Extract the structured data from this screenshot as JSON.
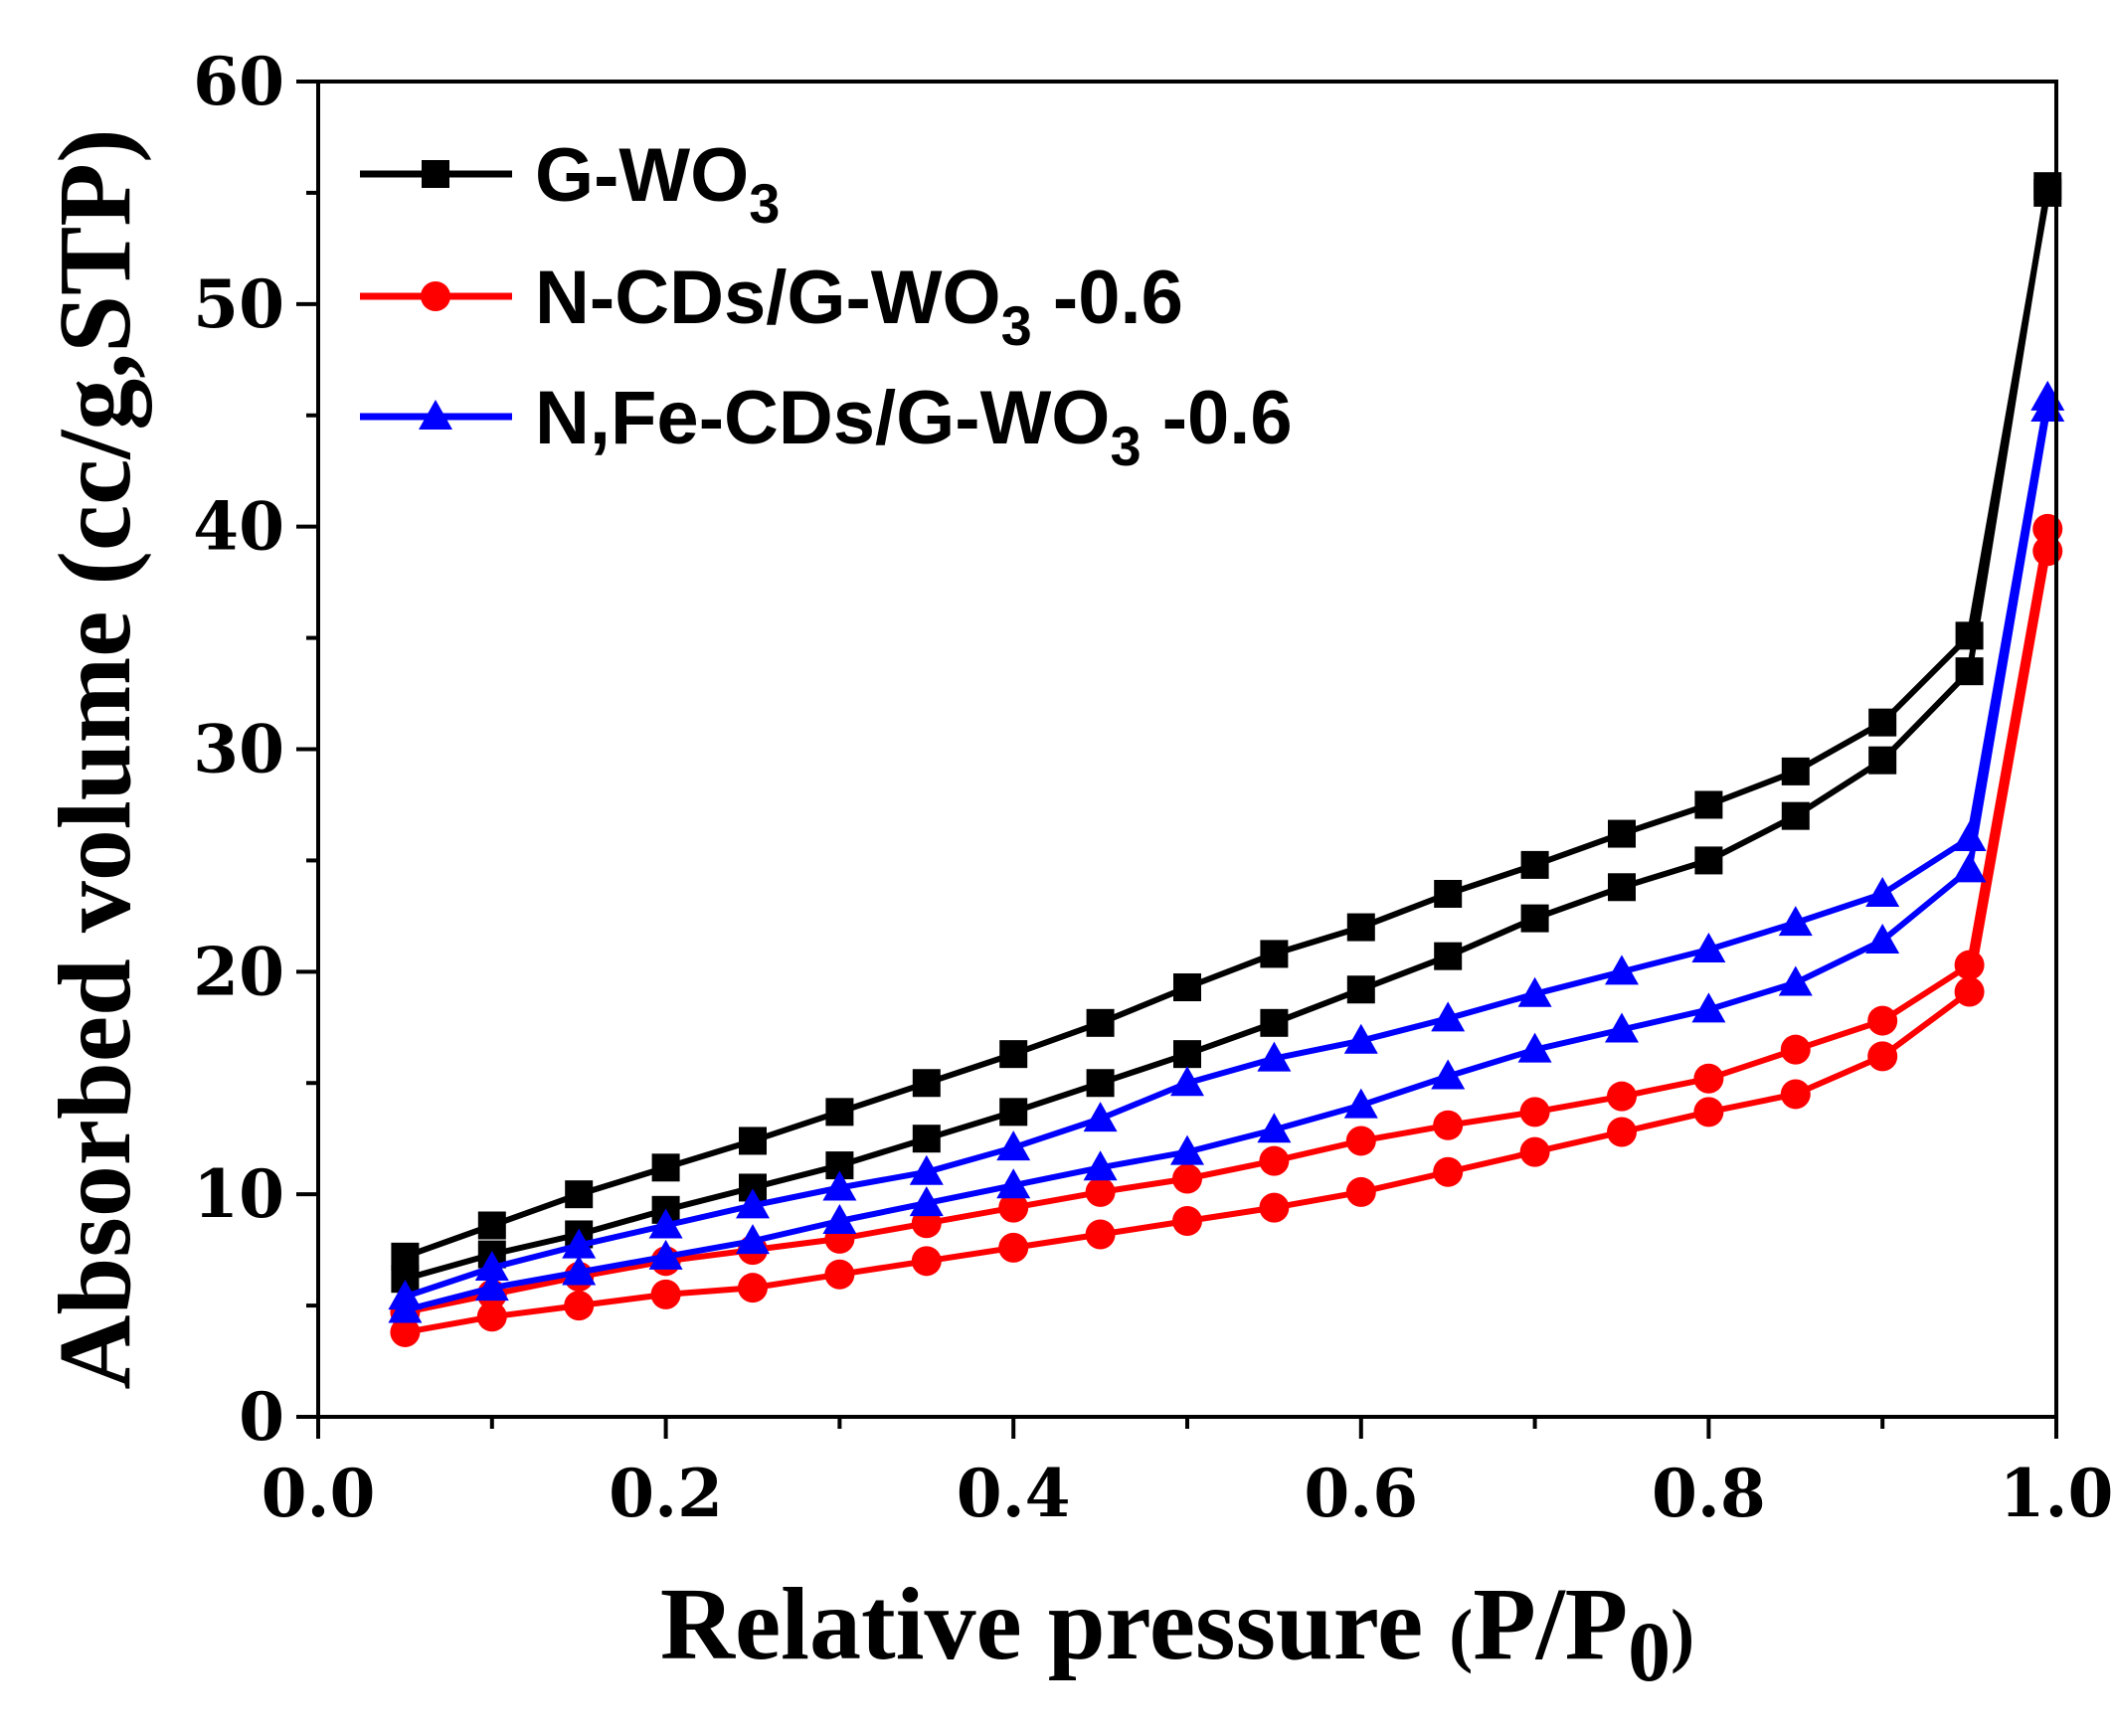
{
  "chart_data": {
    "type": "line",
    "title": "",
    "xlabel": "Relative pressure (P/P0)",
    "xlabel_main": "Relative pressure ",
    "xlabel_open": "(",
    "xlabel_var": "P/P",
    "xlabel_sub": "0",
    "xlabel_close": ")",
    "ylabel": "Absorbed volume (cc/g,STP)",
    "xlim": [
      0.0,
      1.0
    ],
    "ylim": [
      0,
      60
    ],
    "xticks": [
      "0.0",
      "0.2",
      "0.4",
      "0.6",
      "0.8",
      "1.0"
    ],
    "yticks": [
      "0",
      "10",
      "20",
      "30",
      "40",
      "50",
      "60"
    ],
    "legend_position": "top-left",
    "series": [
      {
        "name": "G-WO3",
        "label_main": "G-WO",
        "label_sub": "3",
        "label_suffix": "",
        "color": "#000000",
        "marker": "square",
        "adsorption": {
          "x": [
            0.05,
            0.1,
            0.15,
            0.2,
            0.25,
            0.3,
            0.35,
            0.4,
            0.45,
            0.5,
            0.55,
            0.6,
            0.65,
            0.7,
            0.75,
            0.8,
            0.85,
            0.9,
            0.95,
            0.995
          ],
          "y": [
            6.2,
            7.3,
            8.2,
            9.3,
            10.3,
            11.3,
            12.5,
            13.7,
            15.0,
            16.3,
            17.7,
            19.2,
            20.7,
            22.4,
            23.8,
            25.0,
            27.0,
            29.5,
            33.5,
            55.3
          ]
        },
        "desorption": {
          "x": [
            0.995,
            0.95,
            0.9,
            0.85,
            0.8,
            0.75,
            0.7,
            0.65,
            0.6,
            0.55,
            0.5,
            0.45,
            0.4,
            0.35,
            0.3,
            0.25,
            0.2,
            0.15,
            0.1,
            0.05
          ],
          "y": [
            55.0,
            35.1,
            31.2,
            29.0,
            27.5,
            26.2,
            24.8,
            23.5,
            22.0,
            20.8,
            19.3,
            17.7,
            16.3,
            15.0,
            13.7,
            12.4,
            11.2,
            10.0,
            8.6,
            7.2
          ]
        }
      },
      {
        "name": "N-CDs/G-WO3 -0.6",
        "label_main": "N-CDs/G-WO",
        "label_sub": "3",
        "label_suffix": " -0.6",
        "color": "#ff0000",
        "marker": "circle",
        "adsorption": {
          "x": [
            0.05,
            0.1,
            0.15,
            0.2,
            0.25,
            0.3,
            0.35,
            0.4,
            0.45,
            0.5,
            0.55,
            0.6,
            0.65,
            0.7,
            0.75,
            0.8,
            0.85,
            0.9,
            0.95,
            0.995
          ],
          "y": [
            3.8,
            4.5,
            5.0,
            5.5,
            5.8,
            6.4,
            7.0,
            7.6,
            8.2,
            8.8,
            9.4,
            10.1,
            11.0,
            11.9,
            12.8,
            13.7,
            14.5,
            16.2,
            19.1,
            38.9
          ]
        },
        "desorption": {
          "x": [
            0.995,
            0.95,
            0.9,
            0.85,
            0.8,
            0.75,
            0.7,
            0.65,
            0.6,
            0.55,
            0.5,
            0.45,
            0.4,
            0.35,
            0.3,
            0.25,
            0.2,
            0.15,
            0.1,
            0.05
          ],
          "y": [
            39.9,
            20.3,
            17.8,
            16.5,
            15.2,
            14.4,
            13.7,
            13.1,
            12.4,
            11.5,
            10.7,
            10.1,
            9.4,
            8.7,
            8.0,
            7.5,
            7.0,
            6.3,
            5.5,
            4.7
          ]
        }
      },
      {
        "name": "N,Fe-CDs/G-WO3 -0.6",
        "label_main": "N,Fe-CDs/G-WO",
        "label_sub": "3",
        "label_suffix": " -0.6",
        "color": "#0000ff",
        "marker": "triangle",
        "adsorption": {
          "x": [
            0.05,
            0.1,
            0.15,
            0.2,
            0.25,
            0.3,
            0.35,
            0.4,
            0.45,
            0.5,
            0.55,
            0.6,
            0.65,
            0.7,
            0.75,
            0.8,
            0.85,
            0.9,
            0.95,
            0.995
          ],
          "y": [
            4.8,
            5.8,
            6.5,
            7.2,
            7.9,
            8.8,
            9.6,
            10.4,
            11.2,
            11.9,
            12.9,
            14.0,
            15.3,
            16.5,
            17.4,
            18.3,
            19.5,
            21.4,
            24.6,
            45.3
          ]
        },
        "desorption": {
          "x": [
            0.995,
            0.95,
            0.9,
            0.85,
            0.8,
            0.75,
            0.7,
            0.65,
            0.6,
            0.55,
            0.5,
            0.45,
            0.4,
            0.35,
            0.3,
            0.25,
            0.2,
            0.15,
            0.1,
            0.05
          ],
          "y": [
            45.8,
            26.0,
            23.5,
            22.2,
            21.0,
            20.0,
            19.0,
            17.9,
            16.9,
            16.1,
            15.0,
            13.4,
            12.1,
            11.0,
            10.3,
            9.5,
            8.6,
            7.7,
            6.7,
            5.4
          ]
        }
      }
    ]
  }
}
